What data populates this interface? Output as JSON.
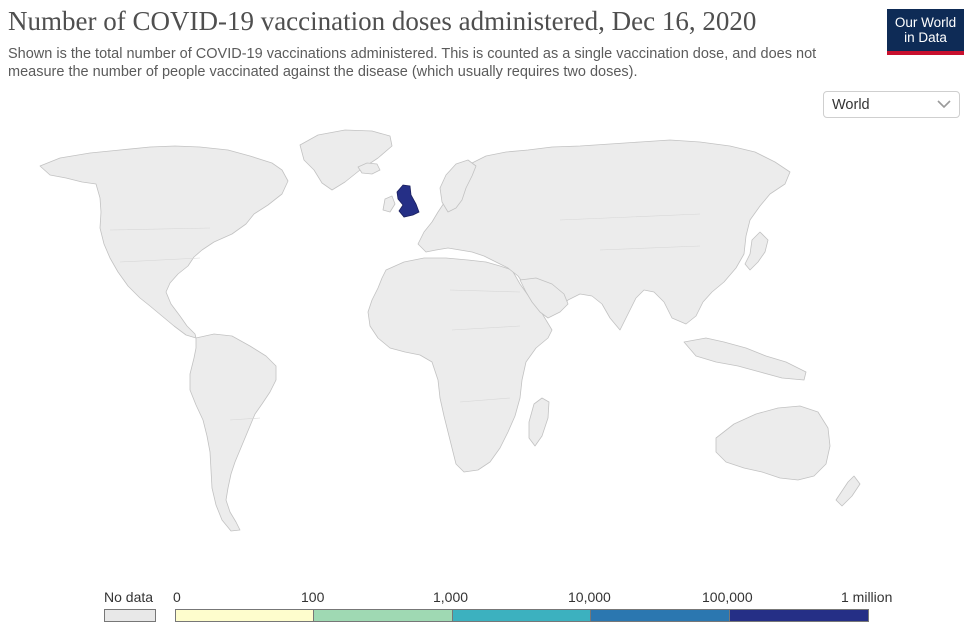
{
  "title": "Number of COVID-19 vaccination doses administered, Dec 16, 2020",
  "subtitle": "Shown is the total number of COVID-19 vaccinations administered. This is counted as a single vaccination dose, and does not measure the number of people vaccinated against the disease (which usually requires two doses).",
  "logo": {
    "line1": "Our World",
    "line2": "in Data"
  },
  "region_selector": {
    "selected": "World",
    "icon": "chevron-down-icon"
  },
  "map": {
    "land_color": "#ececec",
    "border_color": "#c2c2c2",
    "highlighted_regions": [
      {
        "region": "United Kingdom",
        "bin": "100,000 – 1 million",
        "color": "#252f86"
      }
    ]
  },
  "legend": {
    "no_data": {
      "label": "No data",
      "color": "#e8e8e8"
    },
    "ticks": [
      "0",
      "100",
      "1,000",
      "10,000",
      "100,000",
      "1 million"
    ],
    "bins": [
      {
        "range": "0–100",
        "color": "#fefdcd"
      },
      {
        "range": "100–1,000",
        "color": "#9fd9b3"
      },
      {
        "range": "1,000–10,000",
        "color": "#3cb1bf"
      },
      {
        "range": "10,000–100,000",
        "color": "#2b77b0"
      },
      {
        "range": "100,000–1 million",
        "color": "#252f86"
      }
    ]
  }
}
